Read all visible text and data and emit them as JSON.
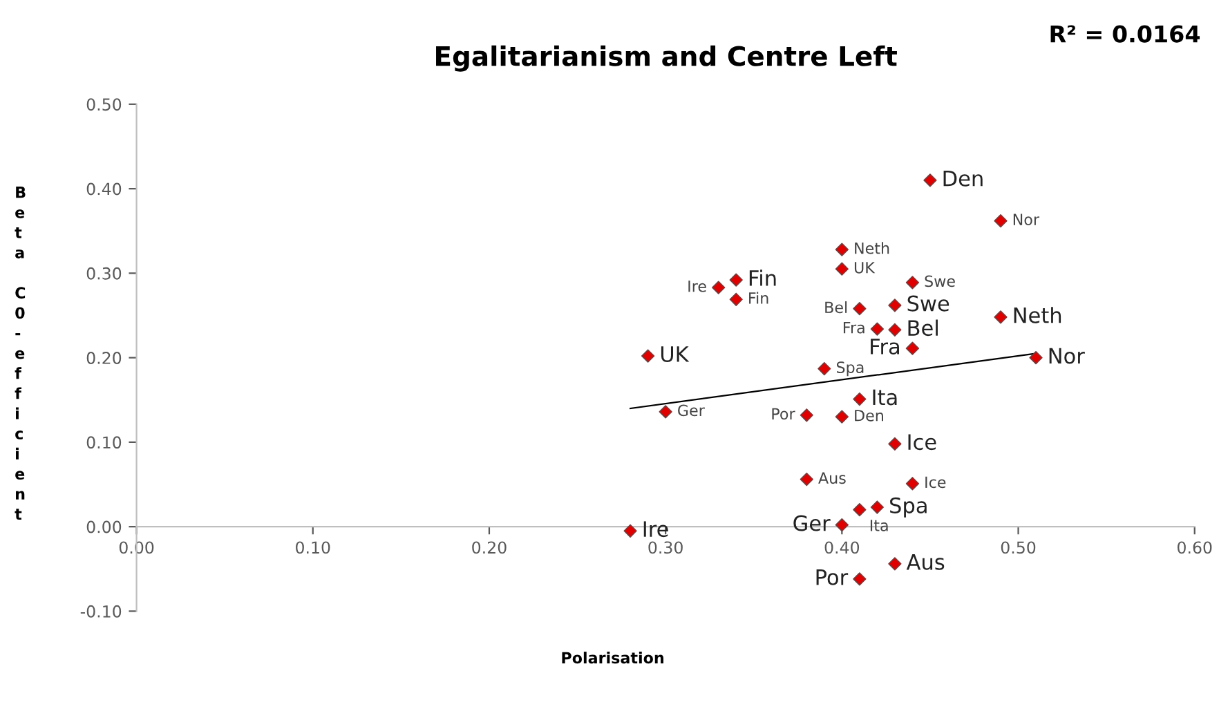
{
  "chart_data": {
    "type": "scatter",
    "title": "Egalitarianism and Centre Left",
    "xlabel": "Polarisation",
    "ylabel": "Beta C0-efficient",
    "annotations": [
      "R² = 0.0164"
    ],
    "xlim": [
      0,
      0.6
    ],
    "xticks": [
      {
        "value": 0,
        "label": "0.00"
      },
      {
        "value": 0.1,
        "label": "0.10"
      },
      {
        "value": 0.2,
        "label": "0.20"
      },
      {
        "value": 0.3,
        "label": "0.30"
      },
      {
        "value": 0.4,
        "label": "0.40"
      },
      {
        "value": 0.5,
        "label": "0.50"
      },
      {
        "value": 0.6,
        "label": "0.60"
      }
    ],
    "ylim": [
      -0.1,
      0.5
    ],
    "yticks": [
      {
        "value": -0.1,
        "label": "-0.10"
      },
      {
        "value": 0,
        "label": "0.00"
      },
      {
        "value": 0.1,
        "label": "0.10"
      },
      {
        "value": 0.2,
        "label": "0.20"
      },
      {
        "value": 0.3,
        "label": "0.30"
      },
      {
        "value": 0.4,
        "label": "0.40"
      },
      {
        "value": 0.5,
        "label": "0.50"
      }
    ],
    "grid": false,
    "legend": false,
    "marker": "diamond",
    "series": [
      {
        "color": "#e00000",
        "x": [
          0.45,
          0.49,
          0.51,
          0.43,
          0.43,
          0.44,
          0.34,
          0.29,
          0.41,
          0.43,
          0.42,
          0.4,
          0.28,
          0.43,
          0.41
        ],
        "values": [
          0.41,
          0.248,
          0.2,
          0.262,
          0.233,
          0.211,
          0.292,
          0.202,
          0.151,
          0.098,
          0.023,
          0.002,
          -0.005,
          -0.044,
          -0.062
        ],
        "value_labels": [
          "Den",
          "Neth",
          "Nor",
          "Swe",
          "Bel",
          "Fra",
          "Fin",
          "UK",
          "Ita",
          "Ice",
          "Spa",
          "Ger",
          "Ire",
          "Aus",
          "Por"
        ]
      },
      {
        "color": "#e00000",
        "x": [
          0.49,
          0.4,
          0.4,
          0.44,
          0.41,
          0.42,
          0.33,
          0.34,
          0.39,
          0.3,
          0.38,
          0.4,
          0.38,
          0.41,
          0.44
        ],
        "values": [
          0.362,
          0.328,
          0.305,
          0.289,
          0.258,
          0.234,
          0.283,
          0.269,
          0.187,
          0.136,
          0.132,
          0.13,
          0.056,
          0.02,
          0.051
        ],
        "value_labels": [
          "Nor",
          "Neth",
          "UK",
          "Swe",
          "Bel",
          "Fra",
          "Ire",
          "Fin",
          "Spa",
          "Ger",
          "Por",
          "Den",
          "Aus",
          "Ita",
          "Ice"
        ]
      },
      {
        "type": "line",
        "color": "#000000",
        "x": [
          0.28,
          0.51
        ],
        "values": [
          0.14,
          0.205
        ],
        "marker": "none",
        "line_style": "solid"
      }
    ]
  }
}
